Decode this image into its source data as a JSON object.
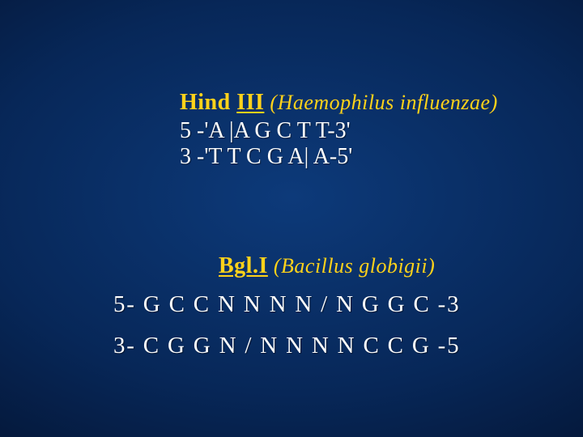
{
  "enzyme1": {
    "name_part1": "Hind ",
    "name_part2": "III",
    "organism": " (Haemophilus influenzae)",
    "seq_top": "5 -'A |A G C T T-3'",
    "seq_bottom": "3 -'T T C G A| A-5'"
  },
  "enzyme2": {
    "name": "Bgl.I",
    "organism": " (Bacillus globigii)",
    "seq_top": "5- G C C N N N N / N G G C -3",
    "seq_bottom": "3- C G G N / N N N N C C G -5"
  }
}
